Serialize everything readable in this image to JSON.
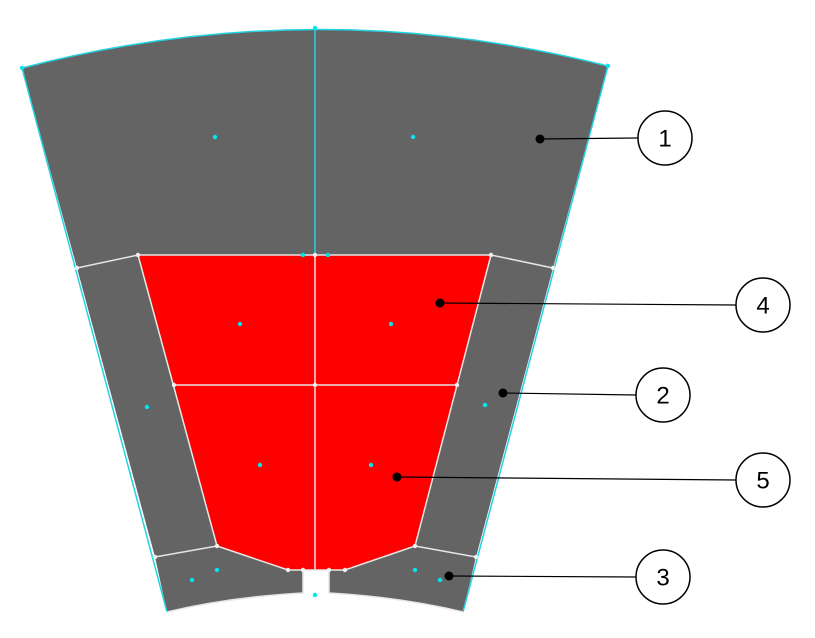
{
  "colors": {
    "region_gray": "#646464",
    "region_red": "#ff0000",
    "mesh_edge": "#e6e6e6",
    "outer_edge": "#22d3e0",
    "node_cyan": "#00e5ee"
  },
  "callouts": [
    {
      "label": "1",
      "region": "outer-sector"
    },
    {
      "label": "4",
      "region": "upper-red-block"
    },
    {
      "label": "2",
      "region": "side-strips"
    },
    {
      "label": "5",
      "region": "lower-red-block"
    },
    {
      "label": "3",
      "region": "bottom-feet"
    }
  ]
}
